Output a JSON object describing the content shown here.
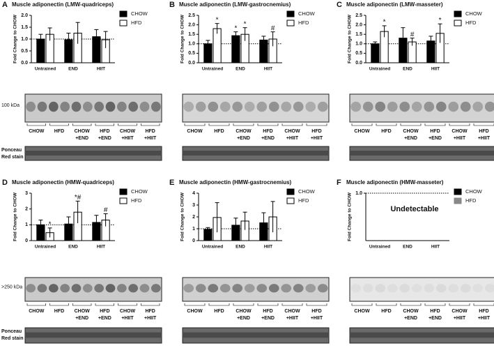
{
  "chart_data": [
    {
      "type": "bar",
      "panel": "A",
      "title": "Muscle adiponectin (LMW-quadriceps)",
      "y_label": "Fold Change to CHOW",
      "categories": [
        "Untrained",
        "END",
        "HIIT"
      ],
      "series": [
        {
          "name": "CHOW",
          "color": "#000000",
          "values": [
            1.0,
            0.97,
            1.1
          ],
          "errors": [
            0.2,
            0.28,
            0.3
          ],
          "markers": [
            null,
            null,
            null
          ]
        },
        {
          "name": "HFD",
          "color": "#ffffff",
          "values": [
            1.2,
            1.25,
            0.97
          ],
          "errors": [
            0.27,
            0.45,
            0.35
          ],
          "markers": [
            null,
            null,
            null
          ]
        }
      ],
      "ylim": [
        0,
        2
      ],
      "yticks": [
        {
          "value": 0,
          "label": "0.0"
        },
        0.5,
        {
          "value": 1,
          "label": "1.0"
        },
        1.5,
        {
          "value": 2,
          "label": "2.0"
        }
      ],
      "refline": 1,
      "legend": "right",
      "blot": {
        "marker": "100 kDa",
        "lanes": [
          [
            "CHOW"
          ],
          [
            "HFD"
          ],
          [
            "CHOW",
            "+END"
          ],
          [
            "HFD",
            "+END"
          ],
          [
            "CHOW",
            "+HIIT"
          ],
          [
            "HFD",
            "+HIIT"
          ]
        ],
        "stain": [
          "Ponceau",
          "Red stain"
        ]
      }
    },
    {
      "type": "bar",
      "panel": "B",
      "title": "Muscle adiponectin (LMW-gastrocnemius)",
      "y_label": "Fold Change to CHOW",
      "categories": [
        "Untrained",
        "END",
        "HIIT"
      ],
      "series": [
        {
          "name": "CHOW",
          "color": "#000000",
          "values": [
            1.0,
            1.43,
            1.2
          ],
          "errors": [
            0.18,
            0.2,
            0.2
          ],
          "markers": [
            null,
            "*",
            null
          ]
        },
        {
          "name": "HFD",
          "color": "#ffffff",
          "values": [
            1.8,
            1.5,
            1.25
          ],
          "errors": [
            0.27,
            0.35,
            0.38
          ],
          "markers": [
            "*",
            "*",
            "#"
          ]
        }
      ],
      "ylim": [
        0,
        2.5
      ],
      "yticks": [
        {
          "value": 0,
          "label": "0.0"
        },
        0.5,
        {
          "value": 1,
          "label": "1.0"
        },
        1.5,
        {
          "value": 2,
          "label": "2.0"
        },
        2.5
      ],
      "refline": 1,
      "legend": "right",
      "blot": {
        "lanes": [
          [
            "CHOW"
          ],
          [
            "HFD"
          ],
          [
            "CHOW",
            "+END"
          ],
          [
            "HFD",
            "+END"
          ],
          [
            "CHOW",
            "+HIIT"
          ],
          [
            "HFD",
            "+HIIT"
          ]
        ]
      }
    },
    {
      "type": "bar",
      "panel": "C",
      "title": "Muscle adiponectin (LMW-masseter)",
      "y_label": "Fold Change to CHOW",
      "categories": [
        "Untrained",
        "END",
        "HIIT"
      ],
      "series": [
        {
          "name": "CHOW",
          "color": "#000000",
          "values": [
            1.0,
            1.3,
            1.15
          ],
          "errors": [
            0.1,
            0.55,
            0.25
          ],
          "markers": [
            null,
            null,
            null
          ]
        },
        {
          "name": "HFD",
          "color": "#ffffff",
          "values": [
            1.65,
            1.1,
            1.55
          ],
          "errors": [
            0.3,
            0.2,
            0.5
          ],
          "markers": [
            "*",
            "#",
            "*"
          ]
        }
      ],
      "ylim": [
        0,
        2.5
      ],
      "yticks": [
        {
          "value": 0,
          "label": "0.0"
        },
        0.5,
        {
          "value": 1,
          "label": "1.0"
        },
        1.5,
        {
          "value": 2,
          "label": "2.0"
        },
        2.5
      ],
      "refline": 1,
      "legend": "right",
      "blot": {
        "lanes": [
          [
            "CHOW"
          ],
          [
            "HFD"
          ],
          [
            "CHOW",
            "+END"
          ],
          [
            "HFD",
            "+END"
          ],
          [
            "CHOW",
            "+HIIT"
          ],
          [
            "HFD",
            "+HIIT"
          ]
        ]
      }
    },
    {
      "type": "bar",
      "panel": "D",
      "title": "Muscle adiponectin (HMW-quadriceps)",
      "y_label": "Fold Change to CHOW",
      "categories": [
        "Untrained",
        "END",
        "HIIT"
      ],
      "series": [
        {
          "name": "CHOW",
          "color": "#000000",
          "values": [
            1.0,
            1.05,
            1.15
          ],
          "errors": [
            0.3,
            0.45,
            0.45
          ],
          "markers": [
            null,
            null,
            null
          ]
        },
        {
          "name": "HFD",
          "color": "#ffffff",
          "values": [
            0.5,
            1.8,
            1.3
          ],
          "errors": [
            0.3,
            0.7,
            0.4
          ],
          "markers": [
            "*",
            "*#",
            "#"
          ]
        }
      ],
      "ylim": [
        0,
        3
      ],
      "yticks": [
        0,
        1,
        2,
        3
      ],
      "refline": 1,
      "legend": "right",
      "blot": {
        "marker": ">250 kDa",
        "lanes": [
          [
            "CHOW"
          ],
          [
            "HFD"
          ],
          [
            "CHOW",
            "+END"
          ],
          [
            "HFD",
            "+END"
          ],
          [
            "CHOW",
            "+HIIT"
          ],
          [
            "HFD",
            "+HIIT"
          ]
        ],
        "stain": [
          "Ponceau",
          "Red stain"
        ]
      }
    },
    {
      "type": "bar",
      "panel": "E",
      "title": "Muscle adiponectin (HMW-gastrocnemius)",
      "y_label": "Fold Change to CHOW",
      "categories": [
        "Untrained",
        "END",
        "HIIT"
      ],
      "series": [
        {
          "name": "CHOW",
          "color": "#000000",
          "values": [
            0.95,
            1.3,
            1.5
          ],
          "errors": [
            0.15,
            0.6,
            0.85
          ],
          "markers": [
            null,
            null,
            null
          ]
        },
        {
          "name": "HFD",
          "color": "#ffffff",
          "values": [
            1.95,
            1.65,
            2.0
          ],
          "errors": [
            1.25,
            0.75,
            1.3
          ],
          "markers": [
            null,
            null,
            null
          ]
        }
      ],
      "ylim": [
        0,
        4
      ],
      "yticks": [
        0,
        1,
        2,
        3,
        4
      ],
      "refline": 1,
      "legend": "right",
      "blot": {
        "lanes": [
          [
            "CHOW"
          ],
          [
            "HFD"
          ],
          [
            "CHOW",
            "+END"
          ],
          [
            "HFD",
            "+END"
          ],
          [
            "CHOW",
            "+HIIT"
          ],
          [
            "HFD",
            "+HIIT"
          ]
        ]
      }
    },
    {
      "type": "bar",
      "panel": "F",
      "title": "Muscle adiponectin (HMW-masseter)",
      "y_label": "Fold Change to CHOW",
      "categories": [
        "Untrained",
        "END",
        "HIIT"
      ],
      "series": [
        {
          "name": "CHOW",
          "color": "#000000",
          "values": [
            null,
            null,
            null
          ],
          "errors": [
            null,
            null,
            null
          ],
          "markers": [
            null,
            null,
            null
          ]
        },
        {
          "name": "HFD",
          "color": "#888888",
          "values": [
            null,
            null,
            null
          ],
          "errors": [
            null,
            null,
            null
          ],
          "markers": [
            null,
            null,
            null
          ]
        }
      ],
      "ylim": [
        0,
        1
      ],
      "yticks": [
        {
          "value": 1,
          "label": "1.0"
        }
      ],
      "refline": 1,
      "legend": "right",
      "note": "Undetectable",
      "blot": {
        "lanes": [
          [
            "CHOW"
          ],
          [
            "HFD"
          ],
          [
            "CHOW",
            "+END"
          ],
          [
            "HFD",
            "+END"
          ],
          [
            "CHOW",
            "+HIIT"
          ],
          [
            "HFD",
            "+HIIT"
          ]
        ]
      }
    }
  ]
}
